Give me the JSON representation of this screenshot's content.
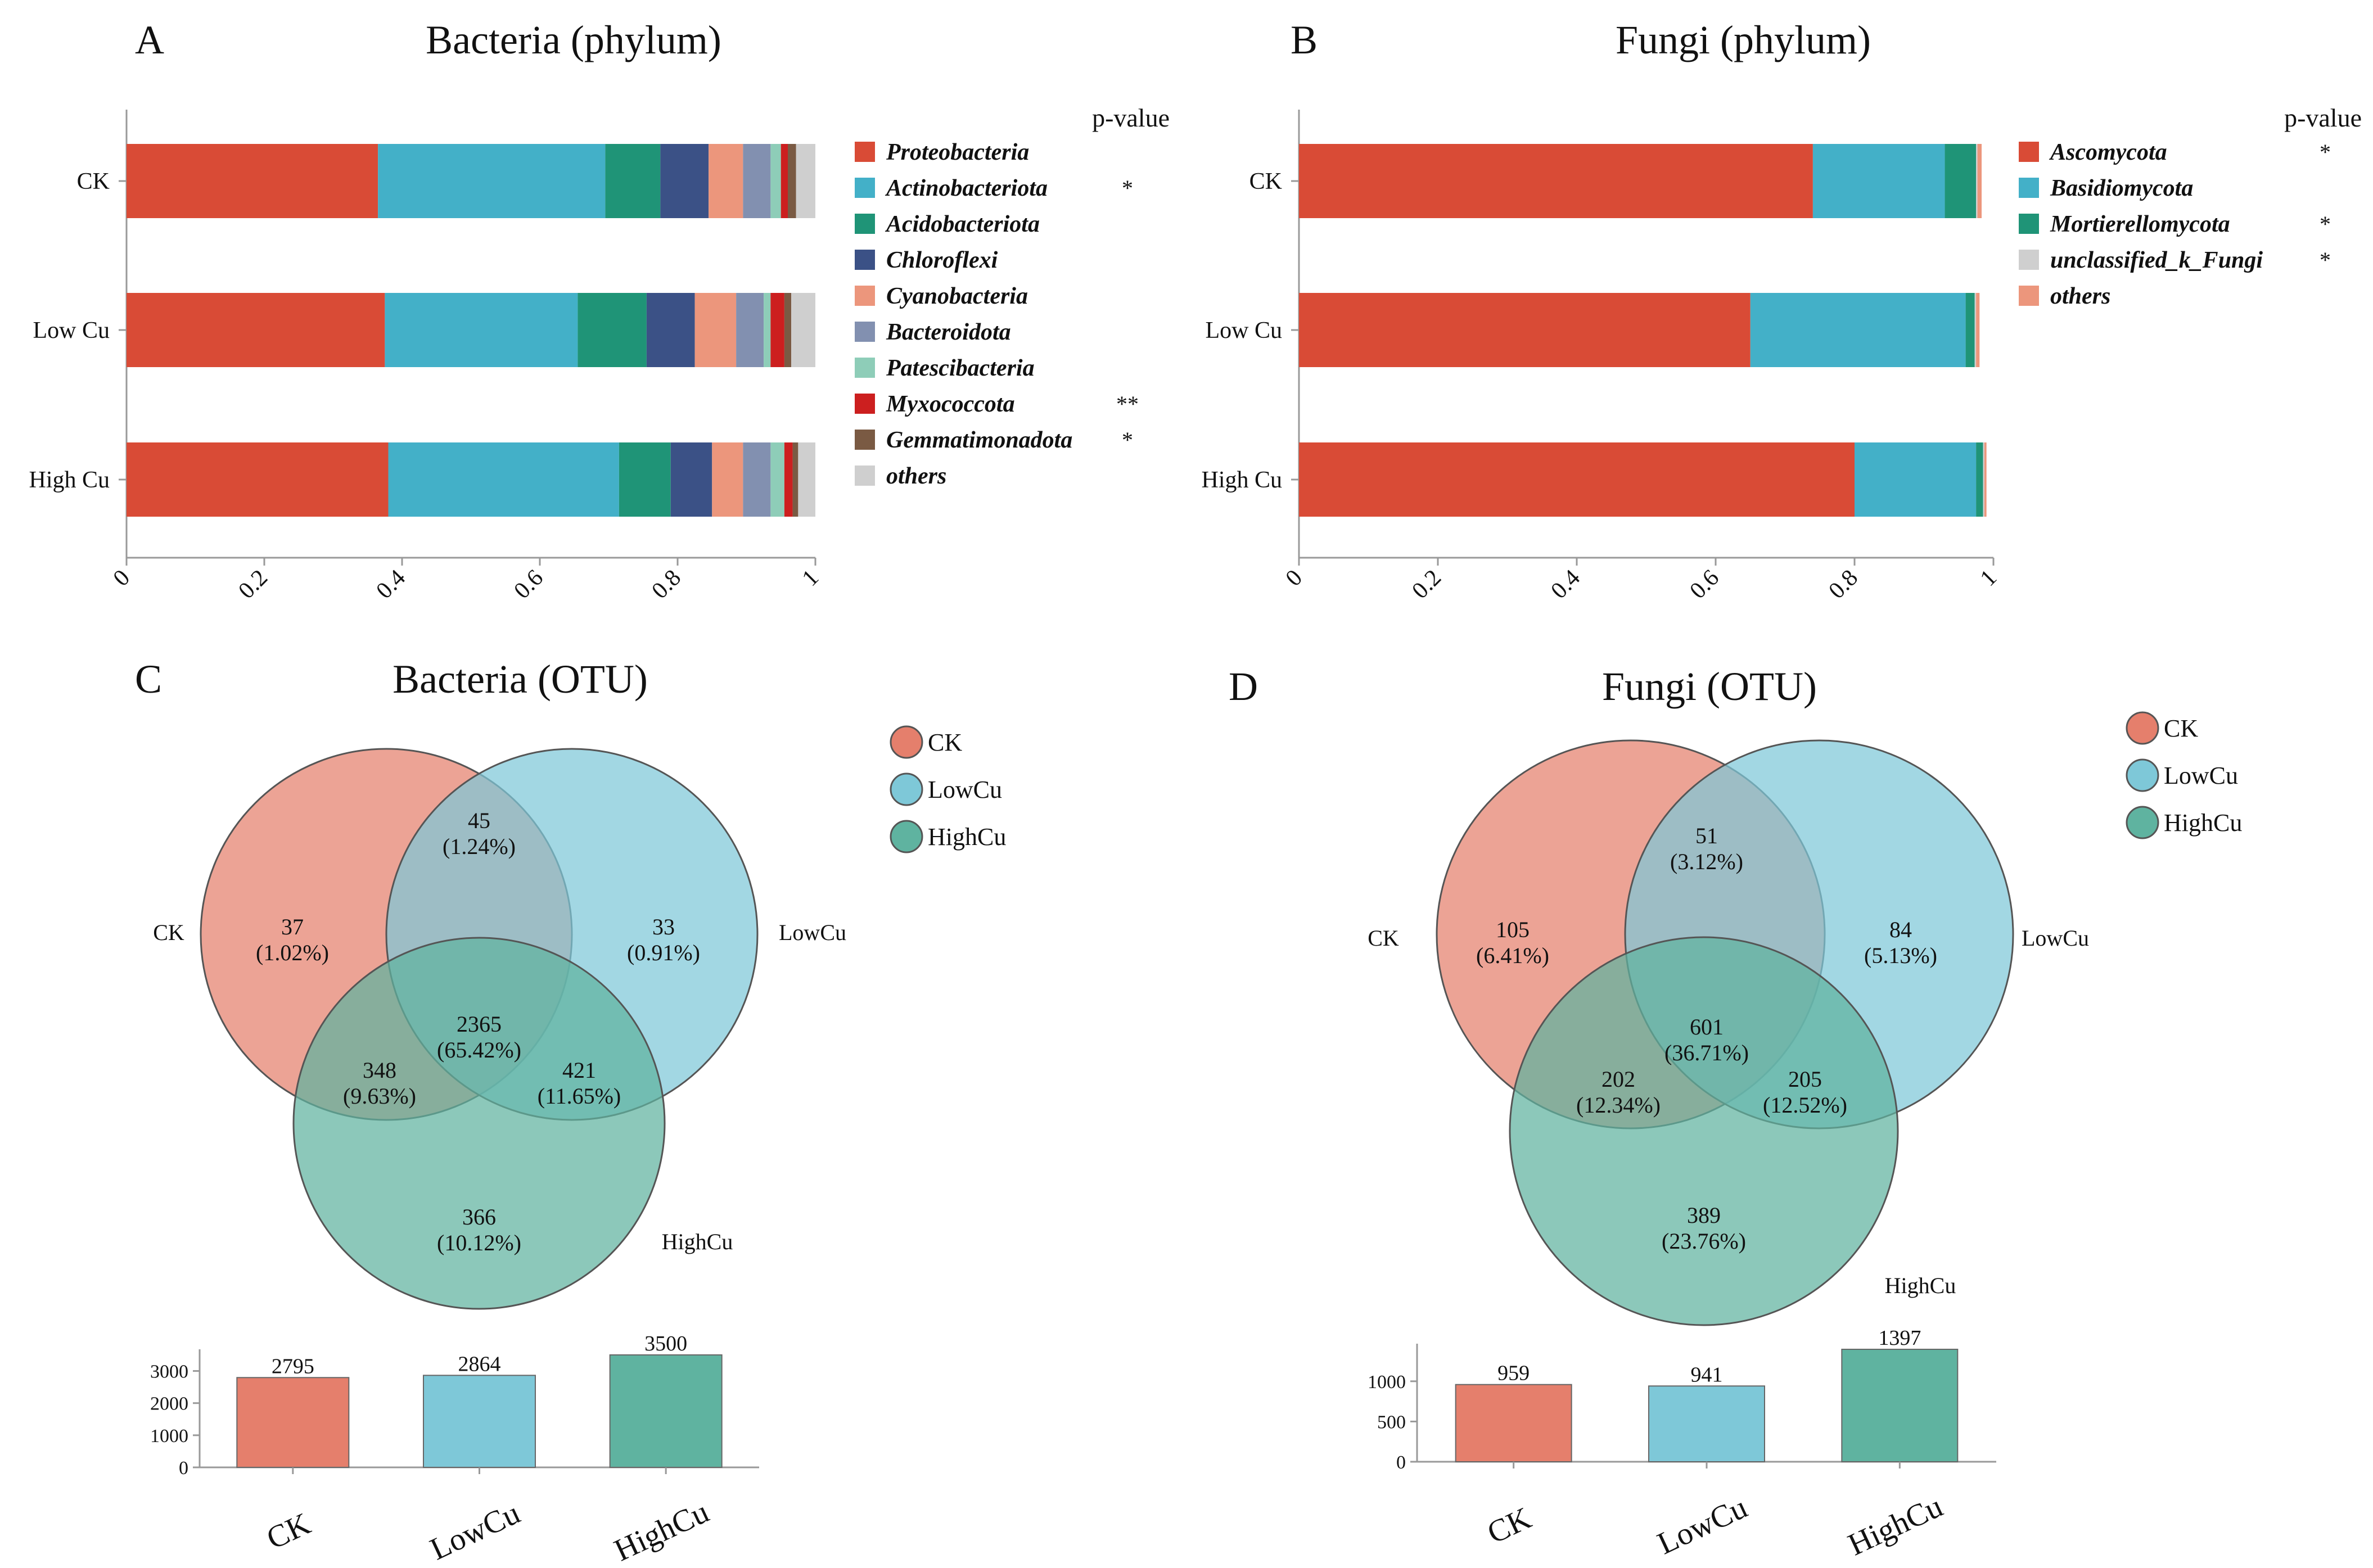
{
  "colors": {
    "CK": "#e57f6c",
    "LowCu": "#7ec8d8",
    "HighCu": "#5fb3a0",
    "axis": "#999999",
    "phylum": {
      "Proteobacteria": "#d94b36",
      "Actinobacteriota": "#43b0c8",
      "Acidobacteriota": "#1f9477",
      "Chloroflexi": "#3b5186",
      "Cyanobacteria": "#ec967c",
      "Bacteroidota": "#8290b0",
      "Patescibacteria": "#8ecdb8",
      "Myxococcota": "#cc1f1f",
      "Gemmatimonadota": "#7a5a43",
      "others": "#cfcfcf",
      "Ascomycota": "#d94b36",
      "Basidiomycota": "#43b0c8",
      "Mortierellomycota": "#1f9477",
      "unclassified_k_Fungi": "#cfcfcf",
      "others_fungi": "#ec967c"
    }
  },
  "chart_data": [
    {
      "panel": "A",
      "type": "bar",
      "orientation": "horizontal-stacked",
      "title": "Bacteria (phylum)",
      "categories": [
        "CK",
        "Low Cu",
        "High Cu"
      ],
      "xlim": [
        0,
        1
      ],
      "xticks": [
        "0",
        "0.2",
        "0.4",
        "0.6",
        "0.8",
        "1"
      ],
      "pvalue_header": "p-value",
      "series": [
        {
          "name": "Proteobacteria",
          "color_key": "Proteobacteria",
          "values": [
            0.365,
            0.375,
            0.38
          ],
          "sig": ""
        },
        {
          "name": "Actinobacteriota",
          "color_key": "Actinobacteriota",
          "values": [
            0.33,
            0.28,
            0.335
          ],
          "sig": "*"
        },
        {
          "name": "Acidobacteriota",
          "color_key": "Acidobacteriota",
          "values": [
            0.08,
            0.1,
            0.075
          ],
          "sig": ""
        },
        {
          "name": "Chloroflexi",
          "color_key": "Chloroflexi",
          "values": [
            0.07,
            0.07,
            0.06
          ],
          "sig": ""
        },
        {
          "name": "Cyanobacteria",
          "color_key": "Cyanobacteria",
          "values": [
            0.05,
            0.06,
            0.045
          ],
          "sig": ""
        },
        {
          "name": "Bacteroidota",
          "color_key": "Bacteroidota",
          "values": [
            0.04,
            0.04,
            0.04
          ],
          "sig": ""
        },
        {
          "name": "Patescibacteria",
          "color_key": "Patescibacteria",
          "values": [
            0.015,
            0.01,
            0.02
          ],
          "sig": ""
        },
        {
          "name": "Myxococcota",
          "color_key": "Myxococcota",
          "values": [
            0.01,
            0.02,
            0.012
          ],
          "sig": "**"
        },
        {
          "name": "Gemmatimonadota",
          "color_key": "Gemmatimonadota",
          "values": [
            0.012,
            0.01,
            0.008
          ],
          "sig": "*"
        },
        {
          "name": "others",
          "color_key": "others",
          "values": [
            0.028,
            0.035,
            0.025
          ],
          "sig": ""
        }
      ]
    },
    {
      "panel": "B",
      "type": "bar",
      "orientation": "horizontal-stacked",
      "title": "Fungi (phylum)",
      "categories": [
        "CK",
        "Low Cu",
        "High Cu"
      ],
      "xlim": [
        0,
        1
      ],
      "xticks": [
        "0",
        "0.2",
        "0.4",
        "0.6",
        "0.8",
        "1"
      ],
      "pvalue_header": "p-value",
      "series": [
        {
          "name": "Ascomycota",
          "color_key": "Ascomycota",
          "values": [
            0.74,
            0.65,
            0.8
          ],
          "sig": "*"
        },
        {
          "name": "Basidiomycota",
          "color_key": "Basidiomycota",
          "values": [
            0.19,
            0.31,
            0.175
          ],
          "sig": ""
        },
        {
          "name": "Mortierellomycota",
          "color_key": "Mortierellomycota",
          "values": [
            0.045,
            0.013,
            0.01
          ],
          "sig": "*"
        },
        {
          "name": "unclassified_k_Fungi",
          "color_key": "unclassified_k_Fungi",
          "values": [
            0.002,
            0.002,
            0.002
          ],
          "sig": "*"
        },
        {
          "name": "others",
          "color_key": "others_fungi",
          "values": [
            0.006,
            0.005,
            0.003
          ],
          "sig": ""
        }
      ]
    },
    {
      "panel": "C",
      "type": "venn",
      "title": "Bacteria (OTU)",
      "sets": [
        "CK",
        "LowCu",
        "HighCu"
      ],
      "regions": [
        {
          "sets": [
            "CK"
          ],
          "count": "37",
          "pct": "(1.02%)"
        },
        {
          "sets": [
            "LowCu"
          ],
          "count": "33",
          "pct": "(0.91%)"
        },
        {
          "sets": [
            "HighCu"
          ],
          "count": "366",
          "pct": "(10.12%)"
        },
        {
          "sets": [
            "CK",
            "LowCu"
          ],
          "count": "45",
          "pct": "(1.24%)"
        },
        {
          "sets": [
            "CK",
            "HighCu"
          ],
          "count": "348",
          "pct": "(9.63%)"
        },
        {
          "sets": [
            "LowCu",
            "HighCu"
          ],
          "count": "421",
          "pct": "(11.65%)"
        },
        {
          "sets": [
            "CK",
            "LowCu",
            "HighCu"
          ],
          "count": "2365",
          "pct": "(65.42%)"
        }
      ],
      "totals": {
        "type": "bar",
        "categories": [
          "CK",
          "LowCu",
          "HighCu"
        ],
        "values": [
          2795,
          2864,
          3500
        ],
        "ylim": [
          0,
          3500
        ],
        "yticks": [
          "0",
          "1000",
          "2000",
          "3000"
        ]
      }
    },
    {
      "panel": "D",
      "type": "venn",
      "title": "Fungi (OTU)",
      "sets": [
        "CK",
        "LowCu",
        "HighCu"
      ],
      "regions": [
        {
          "sets": [
            "CK"
          ],
          "count": "105",
          "pct": "(6.41%)"
        },
        {
          "sets": [
            "LowCu"
          ],
          "count": "84",
          "pct": "(5.13%)"
        },
        {
          "sets": [
            "HighCu"
          ],
          "count": "389",
          "pct": "(23.76%)"
        },
        {
          "sets": [
            "CK",
            "LowCu"
          ],
          "count": "51",
          "pct": "(3.12%)"
        },
        {
          "sets": [
            "CK",
            "HighCu"
          ],
          "count": "202",
          "pct": "(12.34%)"
        },
        {
          "sets": [
            "LowCu",
            "HighCu"
          ],
          "count": "205",
          "pct": "(12.52%)"
        },
        {
          "sets": [
            "CK",
            "LowCu",
            "HighCu"
          ],
          "count": "601",
          "pct": "(36.71%)"
        }
      ],
      "totals": {
        "type": "bar",
        "categories": [
          "CK",
          "LowCu",
          "HighCu"
        ],
        "values": [
          959,
          941,
          1397
        ],
        "ylim": [
          0,
          1397
        ],
        "yticks": [
          "0",
          "500",
          "1000"
        ]
      }
    }
  ]
}
